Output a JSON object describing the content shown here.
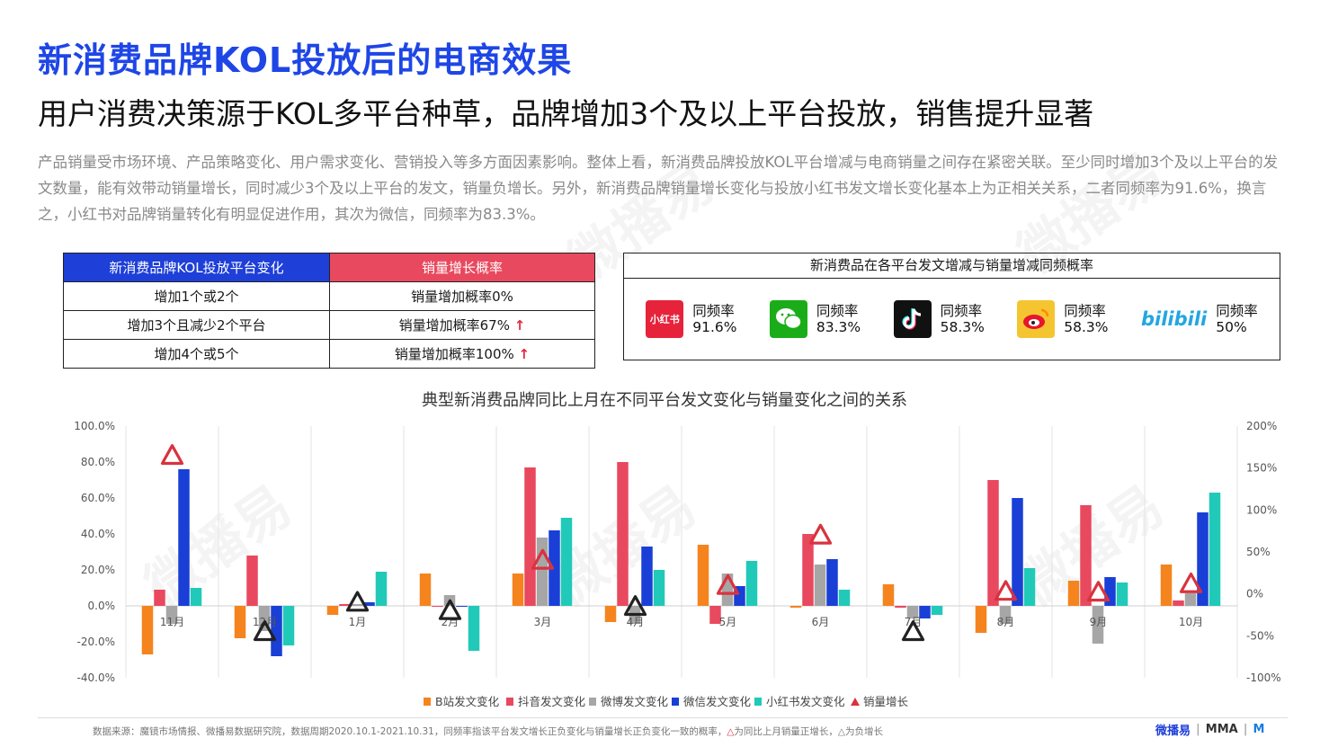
{
  "title": "新消费品牌KOL投放后的电商效果",
  "subtitle": "用户消费决策源于KOL多平台种草，品牌增加3个及以上平台投放，销售提升显著",
  "paragraph": "产品销量受市场环境、产品策略变化、用户需求变化、营销投入等多方面因素影响。整体上看，新消费品牌投放KOL平台增减与电商销量之间存在紧密关联。至少同时增加3个及以上平台的发文数量，能有效带动销量增长，同时减少3个及以上平台的发文，销量负增长。另外，新消费品牌销量增长变化与投放小红书发文增长变化基本上为正相关关系，二者同频率为91.6%，换言之，小红书对品牌销量转化有明显促进作用，其次为微信，同频率为83.3%。",
  "left_table": {
    "headers": [
      "新消费品牌KOL投放平台变化",
      "销量增长概率"
    ],
    "rows": [
      {
        "change": "增加1个或2个",
        "prob": "销量增加概率0%",
        "arrow": ""
      },
      {
        "change": "增加3个且减少2个平台",
        "prob": "销量增加概率67%",
        "arrow": "↑"
      },
      {
        "change": "增加4个或5个",
        "prob": "销量增加概率100%",
        "arrow": "↑"
      }
    ]
  },
  "right_box": {
    "header": "新消费品在各平台发文增减与销量增减同频概率",
    "platforms": [
      {
        "icon": "xiaohongshu-icon",
        "icon_text": "小红书",
        "label": "同频率",
        "value": "91.6%",
        "color": "#e6233a"
      },
      {
        "icon": "wechat-icon",
        "icon_text": "",
        "label": "同频率",
        "value": "83.3%",
        "color": "#1aad19"
      },
      {
        "icon": "douyin-icon",
        "icon_text": "",
        "label": "同频率",
        "value": "58.3%",
        "color": "#111111"
      },
      {
        "icon": "weibo-icon",
        "icon_text": "",
        "label": "同频率",
        "value": "58.3%",
        "color": "#f5c531"
      },
      {
        "icon": "bilibili-icon",
        "icon_text": "bilibili",
        "label": "同频率",
        "value": "50%",
        "color": "#23a6e0"
      }
    ]
  },
  "chart_title": "典型新消费品牌同比上月在不同平台发文变化与销量变化之间的关系",
  "chart_data": {
    "type": "bar",
    "categories": [
      "11月",
      "12月",
      "1月",
      "2月",
      "3月",
      "4月",
      "5月",
      "6月",
      "7月",
      "8月",
      "9月",
      "10月"
    ],
    "ylim": [
      -40,
      100
    ],
    "y_ticks": [
      "100.0%",
      "80.0%",
      "60.0%",
      "40.0%",
      "20.0%",
      "0.0%",
      "-20.0%",
      "-40.0%"
    ],
    "y2lim": [
      -100,
      200
    ],
    "y2_ticks": [
      "200%",
      "150%",
      "100%",
      "50%",
      "0%",
      "-50%",
      "-100%"
    ],
    "grid": false,
    "legend_position": "bottom",
    "series": [
      {
        "name": "B站发文变化",
        "color": "#f5841f",
        "values": [
          -27,
          -18,
          -5,
          18,
          18,
          -9,
          34,
          -1,
          12,
          -15,
          14,
          23
        ]
      },
      {
        "name": "抖音发文变化",
        "color": "#e8495e",
        "values": [
          9,
          28,
          1,
          0,
          77,
          80,
          -10,
          40,
          -1,
          70,
          56,
          3
        ]
      },
      {
        "name": "微博发文变化",
        "color": "#a6a6a6",
        "values": [
          -10,
          -14,
          1,
          6,
          38,
          -10,
          18,
          23,
          -7,
          -10,
          -21,
          7
        ]
      },
      {
        "name": "微信发文变化",
        "color": "#1a3fd6",
        "values": [
          76,
          -28,
          2,
          0,
          42,
          33,
          11,
          26,
          -7,
          60,
          16,
          52
        ]
      },
      {
        "name": "小红书发文变化",
        "color": "#21c9b9",
        "values": [
          10,
          -22,
          19,
          -25,
          49,
          20,
          25,
          9,
          -5,
          21,
          13,
          63
        ]
      }
    ],
    "markers": {
      "name": "销量增长",
      "values": [
        165,
        -45,
        -10,
        -20,
        40,
        -15,
        10,
        70,
        -45,
        3,
        2,
        12
      ],
      "positive_color": "#d9333f",
      "negative_color": "#222222"
    }
  },
  "footer": {
    "source_prefix": "数据来源：魔镜市场情报、微播易数据研究院，数据周期2020.10.1-2021.10.31，同频率指该平台发文增长正负变化与销量增长正负变化一致的概率，",
    "tri_pos": "△",
    "tri_pos_text": "为同比上月销量正增长，",
    "tri_neg": "△",
    "tri_neg_text": "为负增长",
    "logo1": "微播易",
    "logo2": "MMA",
    "logo3": "M"
  },
  "watermark": "微播易"
}
